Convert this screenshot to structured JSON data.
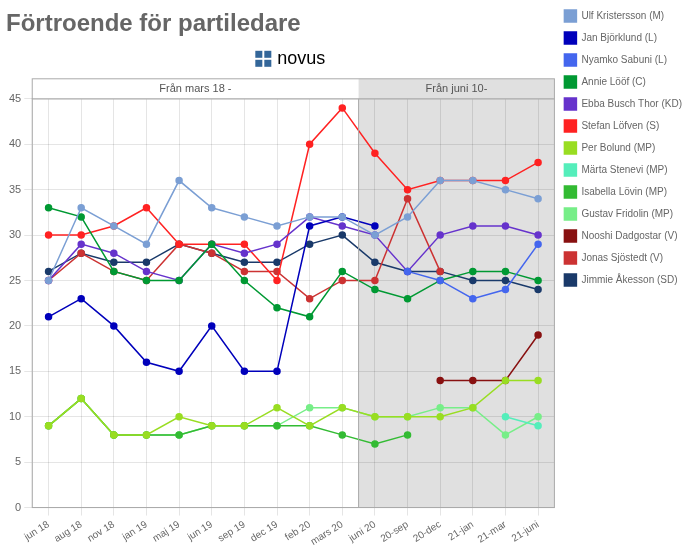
{
  "chart_data": {
    "type": "line",
    "title": "Förtroende för partiledare",
    "categories": [
      "jun 18",
      "aug 18",
      "nov 18",
      "jan 19",
      "maj 19",
      "jun 19",
      "sep 19",
      "dec 19",
      "feb 20",
      "mars 20",
      "juni 20",
      "20-sep",
      "20-dec",
      "21-jan",
      "21-mar",
      "21-juni"
    ],
    "series": [
      {
        "name": "Ulf Kristersson (M)",
        "color": "#7B9FD4",
        "values": [
          25,
          33,
          31,
          29,
          36,
          33,
          32,
          31,
          32,
          32,
          30,
          32,
          36,
          36,
          35,
          34
        ]
      },
      {
        "name": "Jan Björklund (L)",
        "color": "#0000BB",
        "values": [
          21,
          23,
          20,
          16,
          15,
          20,
          15,
          15,
          31,
          32,
          31,
          null,
          null,
          null,
          null,
          null
        ]
      },
      {
        "name": "Nyamko Sabuni (L)",
        "color": "#4466EE",
        "values": [
          null,
          null,
          null,
          null,
          null,
          null,
          null,
          null,
          null,
          null,
          null,
          26,
          25,
          23,
          24,
          29
        ]
      },
      {
        "name": "Annie Lööf (C)",
        "color": "#009933",
        "values": [
          33,
          32,
          26,
          25,
          25,
          29,
          25,
          22,
          21,
          26,
          24,
          23,
          25,
          26,
          26,
          25
        ]
      },
      {
        "name": "Ebba Busch Thor (KD)",
        "color": "#6633CC",
        "values": [
          25,
          29,
          28,
          26,
          25,
          29,
          28,
          29,
          32,
          31,
          30,
          26,
          30,
          31,
          31,
          30
        ]
      },
      {
        "name": "Stefan Löfven (S)",
        "color": "#FF2222",
        "values": [
          30,
          30,
          31,
          33,
          29,
          29,
          29,
          25,
          40,
          44,
          39,
          35,
          36,
          36,
          36,
          38
        ]
      },
      {
        "name": "Per Bolund (MP)",
        "color": "#99DD22",
        "values": [
          9,
          12,
          8,
          8,
          10,
          9,
          9,
          11,
          9,
          11,
          10,
          10,
          10,
          11,
          14,
          14
        ]
      },
      {
        "name": "Märta Stenevi (MP)",
        "color": "#55EEBB",
        "values": [
          null,
          null,
          null,
          null,
          null,
          null,
          null,
          null,
          null,
          null,
          null,
          null,
          null,
          null,
          10,
          9
        ]
      },
      {
        "name": "Isabella Lövin (MP)",
        "color": "#33BB33",
        "values": [
          9,
          12,
          8,
          8,
          8,
          9,
          9,
          9,
          9,
          8,
          7,
          8,
          null,
          null,
          null,
          null
        ]
      },
      {
        "name": "Gustav Fridolin (MP)",
        "color": "#77EE88",
        "values": [
          9,
          12,
          8,
          8,
          8,
          9,
          9,
          9,
          11,
          11,
          10,
          10,
          11,
          11,
          8,
          10
        ]
      },
      {
        "name": "Nooshi Dadgostar (V)",
        "color": "#881111",
        "values": [
          null,
          null,
          null,
          null,
          null,
          null,
          null,
          null,
          null,
          null,
          null,
          null,
          14,
          14,
          14,
          19
        ]
      },
      {
        "name": "Jonas Sjöstedt (V)",
        "color": "#CC3333",
        "values": [
          25,
          28,
          26,
          25,
          29,
          28,
          26,
          26,
          23,
          25,
          25,
          34,
          26,
          null,
          null,
          null
        ]
      },
      {
        "name": "Jimmie Åkesson (SD)",
        "color": "#1A3A6A",
        "values": [
          26,
          28,
          27,
          27,
          29,
          28,
          27,
          27,
          29,
          30,
          27,
          26,
          26,
          25,
          25,
          24
        ]
      }
    ],
    "sections": [
      {
        "label": "Från mars 18 -",
        "from": "jun 18",
        "to": "mars 20",
        "color": "#FFFFFF"
      },
      {
        "label": "Från juni 10-",
        "from": "juni 20",
        "to": "21-juni",
        "color": "#E0E0E0"
      }
    ],
    "annotations": [
      "novus"
    ],
    "ylim": [
      0,
      45
    ],
    "yticks": [
      0,
      5,
      10,
      15,
      20,
      25,
      30,
      35,
      40,
      45
    ],
    "grid": true,
    "legend": "right",
    "marker": "circle"
  }
}
